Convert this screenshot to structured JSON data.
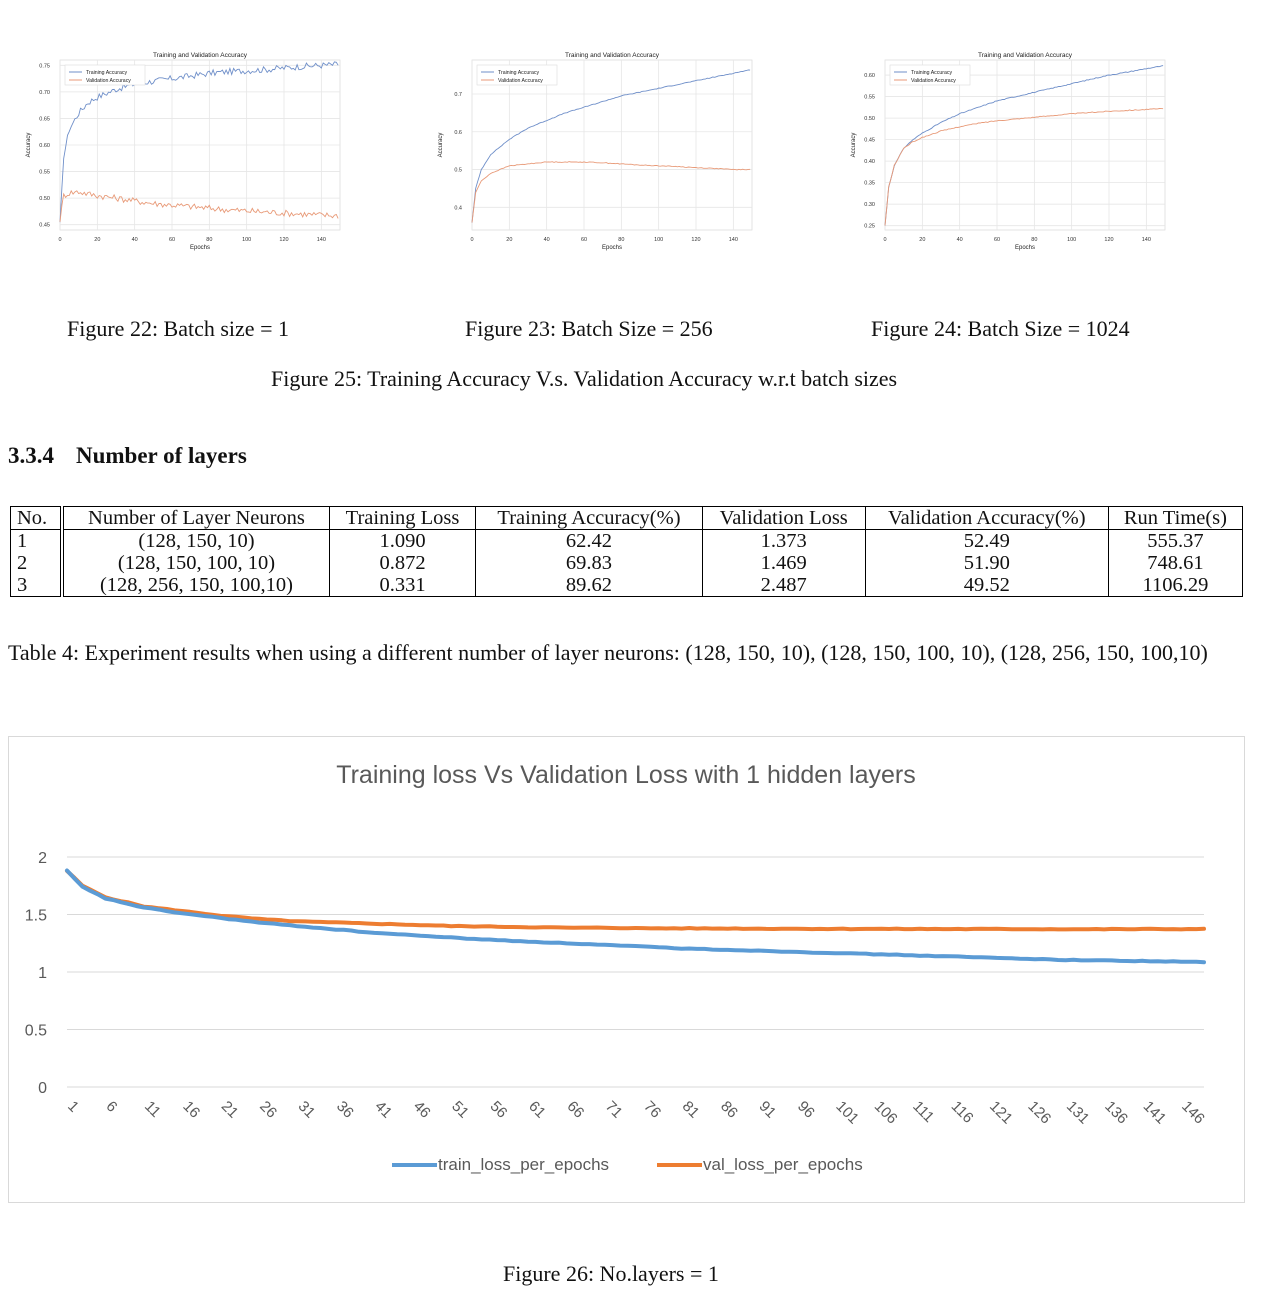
{
  "top_figures": [
    {
      "caption": "Figure 22: Batch size = 1",
      "chart_data": {
        "type": "line",
        "title": "Training and Validation Accuracy",
        "xlabel": "Epochs",
        "ylabel": "Accuracy",
        "xlim": [
          0,
          150
        ],
        "ylim": [
          0.44,
          0.76
        ],
        "xticks": [
          "0",
          "20",
          "40",
          "60",
          "80",
          "100",
          "120",
          "140"
        ],
        "yticks": [
          "0.45",
          "0.50",
          "0.55",
          "0.60",
          "0.65",
          "0.70",
          "0.75"
        ],
        "grid": true,
        "legend_position": "top-left",
        "noisy": true,
        "series": [
          {
            "name": "Training Accuracy",
            "color": "#6f8fc9",
            "x": [
              0,
              2,
              5,
              10,
              15,
              20,
              30,
              40,
              50,
              60,
              70,
              80,
              90,
              100,
              110,
              120,
              130,
              140,
              150
            ],
            "values": [
              0.45,
              0.58,
              0.63,
              0.66,
              0.68,
              0.69,
              0.705,
              0.715,
              0.72,
              0.725,
              0.73,
              0.735,
              0.738,
              0.74,
              0.742,
              0.745,
              0.748,
              0.75,
              0.752
            ]
          },
          {
            "name": "Validation Accuracy",
            "color": "#e89a78",
            "x": [
              0,
              2,
              5,
              10,
              15,
              20,
              30,
              40,
              50,
              60,
              70,
              80,
              90,
              100,
              110,
              120,
              130,
              140,
              150
            ],
            "values": [
              0.46,
              0.505,
              0.51,
              0.512,
              0.508,
              0.505,
              0.5,
              0.495,
              0.49,
              0.487,
              0.484,
              0.481,
              0.478,
              0.476,
              0.474,
              0.472,
              0.47,
              0.468,
              0.467
            ]
          }
        ]
      }
    },
    {
      "caption": "Figure 23: Batch Size = 256",
      "chart_data": {
        "type": "line",
        "title": "Training and Validation Accuracy",
        "xlabel": "Epochs",
        "ylabel": "Accuracy",
        "xlim": [
          0,
          150
        ],
        "ylim": [
          0.34,
          0.79
        ],
        "xticks": [
          "0",
          "20",
          "40",
          "60",
          "80",
          "100",
          "120",
          "140"
        ],
        "yticks": [
          "0.4",
          "0.5",
          "0.6",
          "0.7"
        ],
        "grid": true,
        "legend_position": "top-left",
        "noisy": false,
        "series": [
          {
            "name": "Training Accuracy",
            "color": "#6f8fc9",
            "x": [
              0,
              2,
              5,
              10,
              15,
              20,
              30,
              40,
              50,
              60,
              70,
              80,
              90,
              100,
              110,
              120,
              130,
              140,
              150
            ],
            "values": [
              0.36,
              0.45,
              0.5,
              0.54,
              0.56,
              0.58,
              0.61,
              0.63,
              0.65,
              0.665,
              0.68,
              0.695,
              0.705,
              0.715,
              0.725,
              0.735,
              0.745,
              0.755,
              0.765
            ]
          },
          {
            "name": "Validation Accuracy",
            "color": "#e89a78",
            "x": [
              0,
              2,
              5,
              10,
              15,
              20,
              30,
              40,
              50,
              60,
              70,
              80,
              90,
              100,
              110,
              120,
              130,
              140,
              150
            ],
            "values": [
              0.36,
              0.44,
              0.47,
              0.49,
              0.5,
              0.51,
              0.515,
              0.52,
              0.52,
              0.52,
              0.518,
              0.515,
              0.512,
              0.51,
              0.508,
              0.505,
              0.503,
              0.5,
              0.5
            ]
          }
        ]
      }
    },
    {
      "caption": "Figure 24: Batch Size = 1024",
      "chart_data": {
        "type": "line",
        "title": "Training and Validation Accuracy",
        "xlabel": "Epochs",
        "ylabel": "Accuracy",
        "xlim": [
          0,
          150
        ],
        "ylim": [
          0.24,
          0.635
        ],
        "xticks": [
          "0",
          "20",
          "40",
          "60",
          "80",
          "100",
          "120",
          "140"
        ],
        "yticks": [
          "0.25",
          "0.30",
          "0.35",
          "0.40",
          "0.45",
          "0.50",
          "0.55",
          "0.60"
        ],
        "grid": true,
        "legend_position": "top-left",
        "noisy": false,
        "series": [
          {
            "name": "Training Accuracy",
            "color": "#6f8fc9",
            "x": [
              0,
              2,
              5,
              10,
              15,
              20,
              30,
              40,
              50,
              60,
              70,
              80,
              90,
              100,
              110,
              120,
              130,
              140,
              150
            ],
            "values": [
              0.25,
              0.34,
              0.39,
              0.43,
              0.45,
              0.465,
              0.49,
              0.51,
              0.525,
              0.54,
              0.55,
              0.56,
              0.57,
              0.58,
              0.59,
              0.6,
              0.607,
              0.615,
              0.622
            ]
          },
          {
            "name": "Validation Accuracy",
            "color": "#e89a78",
            "x": [
              0,
              2,
              5,
              10,
              15,
              20,
              30,
              40,
              50,
              60,
              70,
              80,
              90,
              100,
              110,
              120,
              130,
              140,
              150
            ],
            "values": [
              0.25,
              0.34,
              0.39,
              0.43,
              0.445,
              0.455,
              0.47,
              0.48,
              0.488,
              0.494,
              0.498,
              0.502,
              0.506,
              0.51,
              0.513,
              0.516,
              0.518,
              0.52,
              0.522
            ]
          }
        ]
      }
    }
  ],
  "figure25_caption": "Figure 25: Training Accuracy V.s. Validation Accuracy w.r.t batch sizes",
  "section": {
    "number": "3.3.4",
    "title": "Number of layers"
  },
  "table": {
    "headers": [
      "No.",
      "Number of Layer Neurons",
      "Training Loss",
      "Training Accuracy(%)",
      "Validation Loss",
      "Validation Accuracy(%)",
      "Run Time(s)"
    ],
    "rows": [
      [
        "1",
        "(128, 150, 10)",
        "1.090",
        "62.42",
        "1.373",
        "52.49",
        "555.37"
      ],
      [
        "2",
        "(128, 150, 100, 10)",
        "0.872",
        "69.83",
        "1.469",
        "51.90",
        "748.61"
      ],
      [
        "3",
        "(128, 256, 150, 100,10)",
        "0.331",
        "89.62",
        "2.487",
        "49.52",
        "1106.29"
      ]
    ]
  },
  "table_caption": "Table 4: Experiment results when using a different number of layer neurons: (128, 150, 10), (128, 150, 100, 10), (128, 256, 150, 100,10)",
  "figure26": {
    "caption": "Figure 26: No.layers = 1",
    "chart_data": {
      "type": "line",
      "title": "Training loss Vs Validation Loss with 1 hidden layers",
      "xlabel": "",
      "ylabel": "",
      "ylim": [
        0,
        2
      ],
      "yticks": [
        "0",
        "0.5",
        "1",
        "1.5",
        "2"
      ],
      "xlim": [
        1,
        149
      ],
      "xticks": [
        "1",
        "6",
        "11",
        "16",
        "21",
        "26",
        "31",
        "36",
        "41",
        "46",
        "51",
        "56",
        "61",
        "66",
        "71",
        "76",
        "81",
        "86",
        "91",
        "96",
        "101",
        "106",
        "111",
        "116",
        "121",
        "126",
        "131",
        "136",
        "141",
        "146"
      ],
      "grid": true,
      "legend_position": "bottom",
      "series": [
        {
          "name": "train_loss_per_epochs",
          "color": "#5b9bd5",
          "x": [
            1,
            3,
            6,
            11,
            16,
            21,
            26,
            31,
            36,
            41,
            46,
            51,
            56,
            61,
            66,
            71,
            76,
            81,
            86,
            91,
            96,
            101,
            106,
            111,
            116,
            121,
            126,
            131,
            136,
            141,
            146,
            149
          ],
          "values": [
            1.88,
            1.74,
            1.64,
            1.56,
            1.51,
            1.47,
            1.43,
            1.4,
            1.37,
            1.34,
            1.32,
            1.3,
            1.28,
            1.265,
            1.25,
            1.235,
            1.22,
            1.205,
            1.195,
            1.185,
            1.175,
            1.165,
            1.155,
            1.145,
            1.135,
            1.125,
            1.115,
            1.105,
            1.1,
            1.095,
            1.09,
            1.085
          ]
        },
        {
          "name": "val_loss_per_epochs",
          "color": "#ed7d31",
          "x": [
            1,
            3,
            6,
            11,
            16,
            21,
            26,
            31,
            36,
            41,
            46,
            51,
            56,
            61,
            66,
            71,
            76,
            81,
            86,
            91,
            96,
            101,
            106,
            111,
            116,
            121,
            126,
            131,
            136,
            141,
            146,
            149
          ],
          "values": [
            1.88,
            1.75,
            1.65,
            1.57,
            1.53,
            1.49,
            1.46,
            1.44,
            1.43,
            1.42,
            1.41,
            1.4,
            1.395,
            1.39,
            1.385,
            1.385,
            1.38,
            1.38,
            1.378,
            1.377,
            1.376,
            1.375,
            1.375,
            1.374,
            1.374,
            1.373,
            1.373,
            1.372,
            1.372,
            1.373,
            1.373,
            1.373
          ]
        }
      ]
    }
  }
}
